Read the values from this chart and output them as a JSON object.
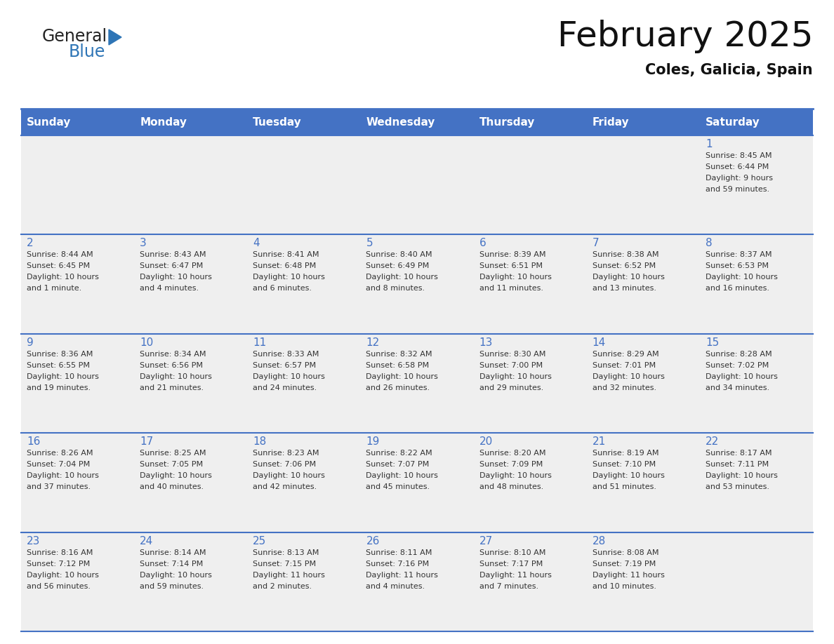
{
  "title": "February 2025",
  "subtitle": "Coles, Galicia, Spain",
  "header_bg": "#4472C4",
  "header_text_color": "#FFFFFF",
  "cell_bg": "#EFEFEF",
  "day_number_color": "#4472C4",
  "info_text_color": "#333333",
  "grid_line_color": "#4472C4",
  "days_of_week": [
    "Sunday",
    "Monday",
    "Tuesday",
    "Wednesday",
    "Thursday",
    "Friday",
    "Saturday"
  ],
  "weeks": [
    [
      {
        "day": null,
        "info": null
      },
      {
        "day": null,
        "info": null
      },
      {
        "day": null,
        "info": null
      },
      {
        "day": null,
        "info": null
      },
      {
        "day": null,
        "info": null
      },
      {
        "day": null,
        "info": null
      },
      {
        "day": 1,
        "info": "Sunrise: 8:45 AM\nSunset: 6:44 PM\nDaylight: 9 hours\nand 59 minutes."
      }
    ],
    [
      {
        "day": 2,
        "info": "Sunrise: 8:44 AM\nSunset: 6:45 PM\nDaylight: 10 hours\nand 1 minute."
      },
      {
        "day": 3,
        "info": "Sunrise: 8:43 AM\nSunset: 6:47 PM\nDaylight: 10 hours\nand 4 minutes."
      },
      {
        "day": 4,
        "info": "Sunrise: 8:41 AM\nSunset: 6:48 PM\nDaylight: 10 hours\nand 6 minutes."
      },
      {
        "day": 5,
        "info": "Sunrise: 8:40 AM\nSunset: 6:49 PM\nDaylight: 10 hours\nand 8 minutes."
      },
      {
        "day": 6,
        "info": "Sunrise: 8:39 AM\nSunset: 6:51 PM\nDaylight: 10 hours\nand 11 minutes."
      },
      {
        "day": 7,
        "info": "Sunrise: 8:38 AM\nSunset: 6:52 PM\nDaylight: 10 hours\nand 13 minutes."
      },
      {
        "day": 8,
        "info": "Sunrise: 8:37 AM\nSunset: 6:53 PM\nDaylight: 10 hours\nand 16 minutes."
      }
    ],
    [
      {
        "day": 9,
        "info": "Sunrise: 8:36 AM\nSunset: 6:55 PM\nDaylight: 10 hours\nand 19 minutes."
      },
      {
        "day": 10,
        "info": "Sunrise: 8:34 AM\nSunset: 6:56 PM\nDaylight: 10 hours\nand 21 minutes."
      },
      {
        "day": 11,
        "info": "Sunrise: 8:33 AM\nSunset: 6:57 PM\nDaylight: 10 hours\nand 24 minutes."
      },
      {
        "day": 12,
        "info": "Sunrise: 8:32 AM\nSunset: 6:58 PM\nDaylight: 10 hours\nand 26 minutes."
      },
      {
        "day": 13,
        "info": "Sunrise: 8:30 AM\nSunset: 7:00 PM\nDaylight: 10 hours\nand 29 minutes."
      },
      {
        "day": 14,
        "info": "Sunrise: 8:29 AM\nSunset: 7:01 PM\nDaylight: 10 hours\nand 32 minutes."
      },
      {
        "day": 15,
        "info": "Sunrise: 8:28 AM\nSunset: 7:02 PM\nDaylight: 10 hours\nand 34 minutes."
      }
    ],
    [
      {
        "day": 16,
        "info": "Sunrise: 8:26 AM\nSunset: 7:04 PM\nDaylight: 10 hours\nand 37 minutes."
      },
      {
        "day": 17,
        "info": "Sunrise: 8:25 AM\nSunset: 7:05 PM\nDaylight: 10 hours\nand 40 minutes."
      },
      {
        "day": 18,
        "info": "Sunrise: 8:23 AM\nSunset: 7:06 PM\nDaylight: 10 hours\nand 42 minutes."
      },
      {
        "day": 19,
        "info": "Sunrise: 8:22 AM\nSunset: 7:07 PM\nDaylight: 10 hours\nand 45 minutes."
      },
      {
        "day": 20,
        "info": "Sunrise: 8:20 AM\nSunset: 7:09 PM\nDaylight: 10 hours\nand 48 minutes."
      },
      {
        "day": 21,
        "info": "Sunrise: 8:19 AM\nSunset: 7:10 PM\nDaylight: 10 hours\nand 51 minutes."
      },
      {
        "day": 22,
        "info": "Sunrise: 8:17 AM\nSunset: 7:11 PM\nDaylight: 10 hours\nand 53 minutes."
      }
    ],
    [
      {
        "day": 23,
        "info": "Sunrise: 8:16 AM\nSunset: 7:12 PM\nDaylight: 10 hours\nand 56 minutes."
      },
      {
        "day": 24,
        "info": "Sunrise: 8:14 AM\nSunset: 7:14 PM\nDaylight: 10 hours\nand 59 minutes."
      },
      {
        "day": 25,
        "info": "Sunrise: 8:13 AM\nSunset: 7:15 PM\nDaylight: 11 hours\nand 2 minutes."
      },
      {
        "day": 26,
        "info": "Sunrise: 8:11 AM\nSunset: 7:16 PM\nDaylight: 11 hours\nand 4 minutes."
      },
      {
        "day": 27,
        "info": "Sunrise: 8:10 AM\nSunset: 7:17 PM\nDaylight: 11 hours\nand 7 minutes."
      },
      {
        "day": 28,
        "info": "Sunrise: 8:08 AM\nSunset: 7:19 PM\nDaylight: 11 hours\nand 10 minutes."
      },
      {
        "day": null,
        "info": null
      }
    ]
  ],
  "logo_text_general": "General",
  "logo_text_blue": "Blue",
  "logo_triangle_color": "#2E75B6",
  "fig_width": 11.88,
  "fig_height": 9.18,
  "dpi": 100
}
